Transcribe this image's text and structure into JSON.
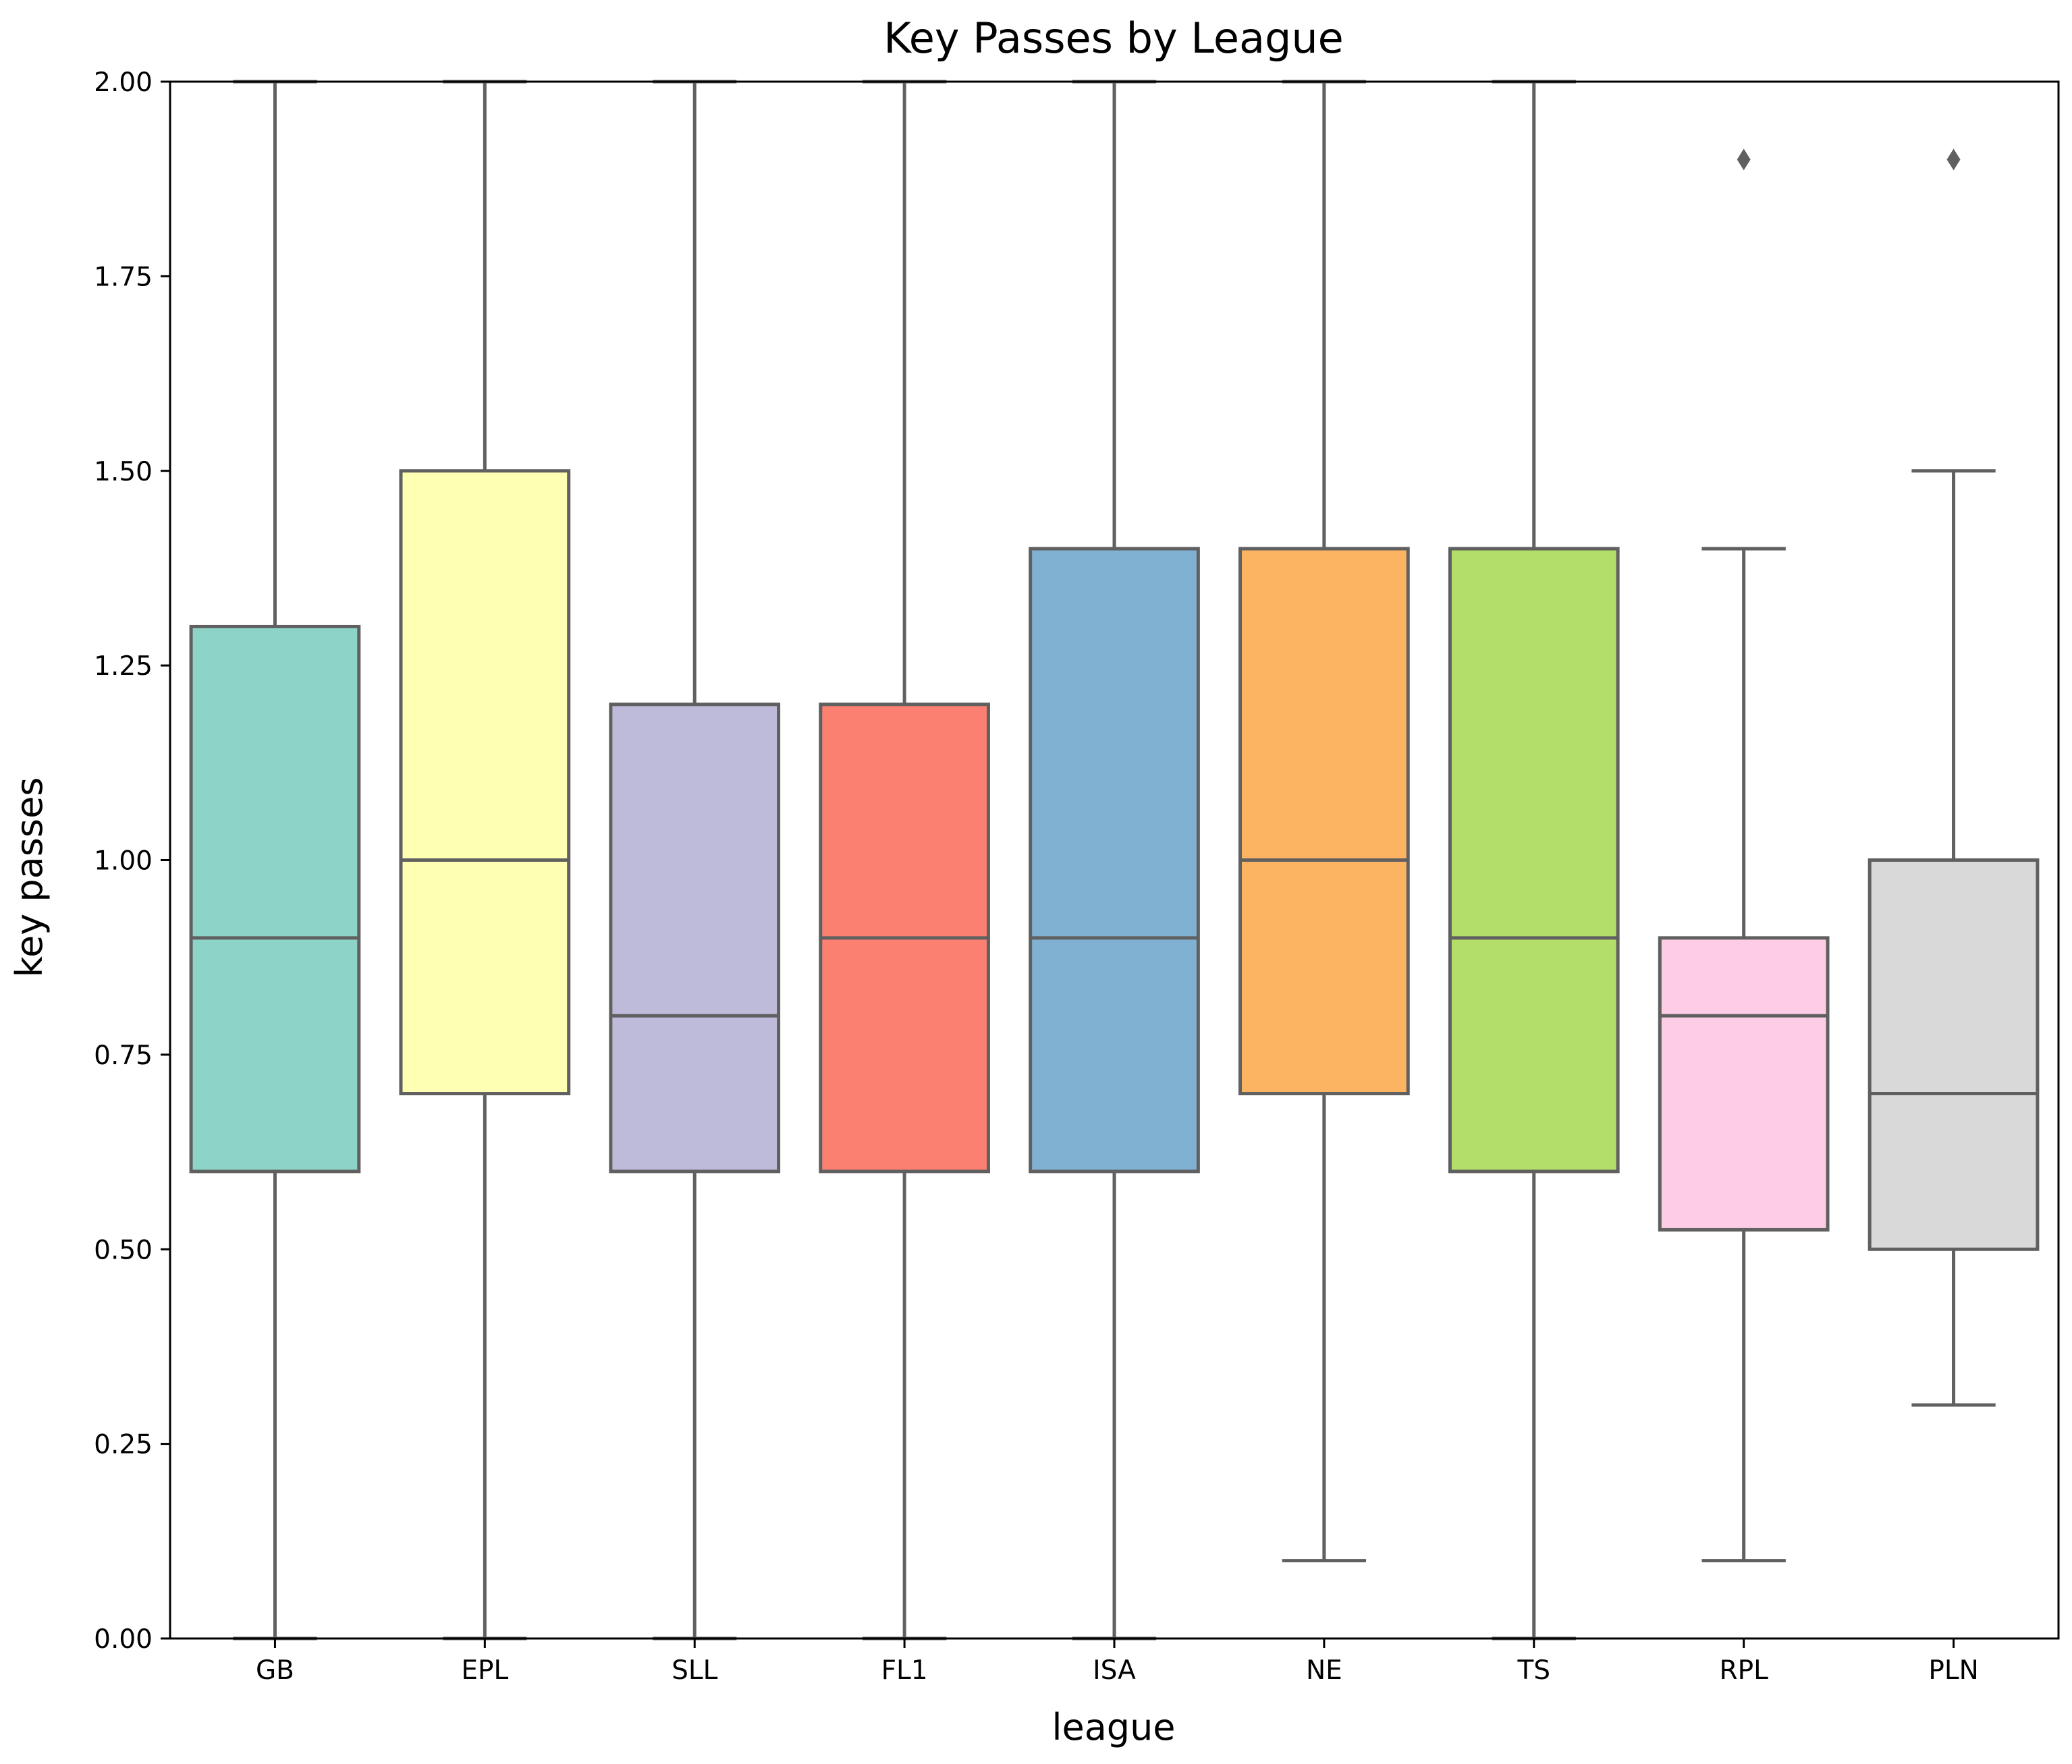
{
  "chart_data": {
    "type": "box",
    "title": "Key Passes by League",
    "xlabel": "league",
    "ylabel": "key passes",
    "ylim": [
      0,
      2.0
    ],
    "yticks": [
      "0.00",
      "0.25",
      "0.50",
      "0.75",
      "1.00",
      "1.25",
      "1.50",
      "1.75",
      "2.00"
    ],
    "grid": false,
    "categories": [
      "GB",
      "EPL",
      "SLL",
      "FL1",
      "ISA",
      "NE",
      "TS",
      "RPL",
      "PLN"
    ],
    "boxes": [
      {
        "category": "GB",
        "whisker_low": 0.0,
        "q1": 0.6,
        "median": 0.9,
        "q3": 1.3,
        "whisker_high": 2.0,
        "outliers": [],
        "color": "#8dd3c7"
      },
      {
        "category": "EPL",
        "whisker_low": 0.0,
        "q1": 0.7,
        "median": 1.0,
        "q3": 1.5,
        "whisker_high": 2.0,
        "outliers": [],
        "color": "#ffffb3"
      },
      {
        "category": "SLL",
        "whisker_low": 0.0,
        "q1": 0.6,
        "median": 0.8,
        "q3": 1.2,
        "whisker_high": 2.0,
        "outliers": [],
        "color": "#bebada"
      },
      {
        "category": "FL1",
        "whisker_low": 0.0,
        "q1": 0.6,
        "median": 0.9,
        "q3": 1.2,
        "whisker_high": 2.0,
        "outliers": [],
        "color": "#fb8072"
      },
      {
        "category": "ISA",
        "whisker_low": 0.0,
        "q1": 0.6,
        "median": 0.9,
        "q3": 1.4,
        "whisker_high": 2.0,
        "outliers": [],
        "color": "#80b1d3"
      },
      {
        "category": "NE",
        "whisker_low": 0.1,
        "q1": 0.7,
        "median": 1.0,
        "q3": 1.4,
        "whisker_high": 2.0,
        "outliers": [],
        "color": "#fdb462"
      },
      {
        "category": "TS",
        "whisker_low": 0.0,
        "q1": 0.6,
        "median": 0.9,
        "q3": 1.4,
        "whisker_high": 2.0,
        "outliers": [],
        "color": "#b3de69"
      },
      {
        "category": "RPL",
        "whisker_low": 0.1,
        "q1": 0.525,
        "median": 0.8,
        "q3": 0.9,
        "whisker_high": 1.4,
        "outliers": [
          1.9
        ],
        "color": "#fccde5"
      },
      {
        "category": "PLN",
        "whisker_low": 0.3,
        "q1": 0.5,
        "median": 0.7,
        "q3": 1.0,
        "whisker_high": 1.5,
        "outliers": [
          1.9
        ],
        "color": "#d9d9d9"
      }
    ],
    "line_color": "#606060"
  }
}
